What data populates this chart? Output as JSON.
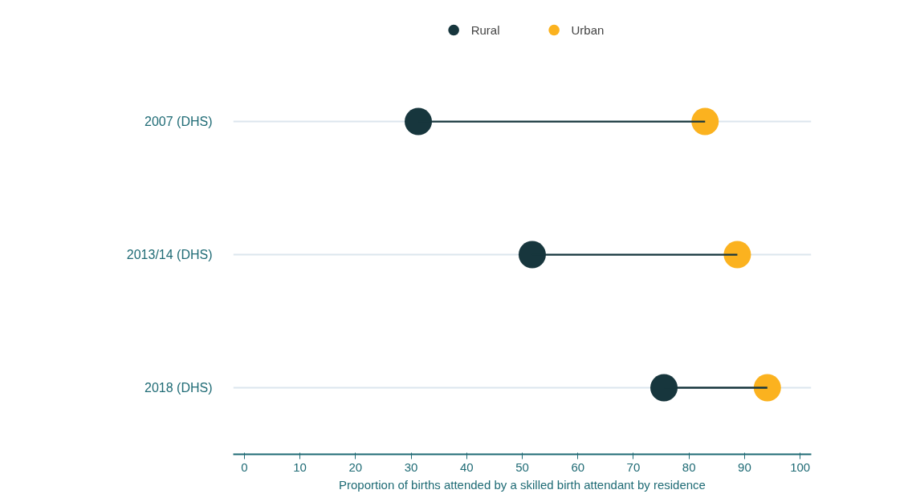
{
  "chart_data": {
    "type": "bar",
    "orientation": "horizontal",
    "xlabel": "Proportion of births attended by a skilled birth attendant by residence",
    "categories": [
      "2007 (DHS)",
      "2013/14 (DHS)",
      "2018 (DHS)"
    ],
    "xlim": [
      -2,
      102
    ],
    "xticks": [
      0,
      10,
      20,
      30,
      40,
      50,
      60,
      70,
      80,
      90,
      100
    ],
    "grid": "y",
    "legend": "top",
    "marker": "circle",
    "series": [
      {
        "color": "#17363d",
        "base": [
          31.3,
          51.8,
          75.5
        ],
        "values": [
          51.6,
          36.9,
          18.6
        ]
      },
      {
        "type": "scatter",
        "name": "Rural",
        "color": "#17363d",
        "values": [
          31.3,
          51.8,
          75.5
        ]
      },
      {
        "type": "scatter",
        "name": "Urban",
        "color": "#fbb21f",
        "values": [
          82.9,
          88.7,
          94.1
        ]
      }
    ]
  }
}
